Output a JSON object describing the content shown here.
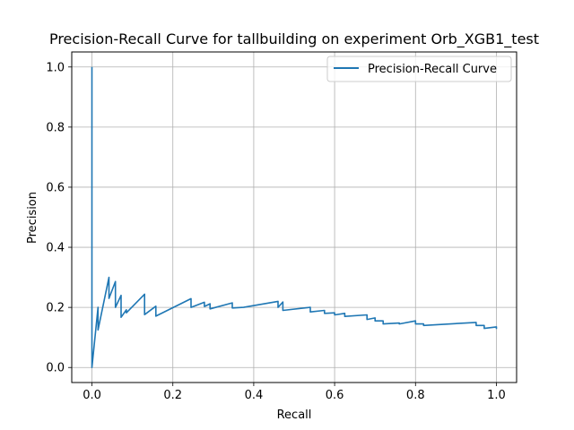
{
  "chart_data": {
    "type": "line",
    "title": "Precision-Recall Curve for tallbuilding on experiment Orb_XGB1_test",
    "xlabel": "Recall",
    "ylabel": "Precision",
    "xlim": [
      -0.05,
      1.05
    ],
    "ylim": [
      -0.05,
      1.05
    ],
    "xticks": [
      0.0,
      0.2,
      0.4,
      0.6,
      0.8,
      1.0
    ],
    "yticks": [
      0.0,
      0.2,
      0.4,
      0.6,
      0.8,
      1.0
    ],
    "xtick_labels": [
      "0.0",
      "0.2",
      "0.4",
      "0.6",
      "0.8",
      "1.0"
    ],
    "ytick_labels": [
      "0.0",
      "0.2",
      "0.4",
      "0.6",
      "0.8",
      "1.0"
    ],
    "grid": true,
    "legend_position": "top-right",
    "series": [
      {
        "name": "Precision-Recall Curve",
        "color": "#1f77b4",
        "x": [
          0.0,
          0.0,
          0.0,
          0.015,
          0.015,
          0.042,
          0.042,
          0.058,
          0.058,
          0.072,
          0.072,
          0.085,
          0.085,
          0.13,
          0.13,
          0.158,
          0.158,
          0.245,
          0.245,
          0.278,
          0.278,
          0.292,
          0.292,
          0.347,
          0.347,
          0.375,
          0.375,
          0.46,
          0.46,
          0.472,
          0.472,
          0.54,
          0.54,
          0.575,
          0.575,
          0.6,
          0.6,
          0.625,
          0.625,
          0.68,
          0.68,
          0.7,
          0.7,
          0.72,
          0.72,
          0.76,
          0.76,
          0.8,
          0.8,
          0.82,
          0.82,
          0.95,
          0.95,
          0.97,
          0.97,
          1.0,
          1.0
        ],
        "y": [
          1.0,
          0.0,
          0.0,
          0.2,
          0.125,
          0.3,
          0.23,
          0.286,
          0.2,
          0.24,
          0.167,
          0.192,
          0.182,
          0.244,
          0.176,
          0.204,
          0.171,
          0.229,
          0.2,
          0.217,
          0.203,
          0.212,
          0.195,
          0.215,
          0.198,
          0.2,
          0.2,
          0.22,
          0.2,
          0.218,
          0.19,
          0.2,
          0.185,
          0.19,
          0.18,
          0.182,
          0.175,
          0.18,
          0.17,
          0.175,
          0.16,
          0.165,
          0.155,
          0.155,
          0.145,
          0.148,
          0.145,
          0.155,
          0.145,
          0.145,
          0.14,
          0.15,
          0.14,
          0.14,
          0.13,
          0.135,
          0.128
        ]
      }
    ]
  }
}
